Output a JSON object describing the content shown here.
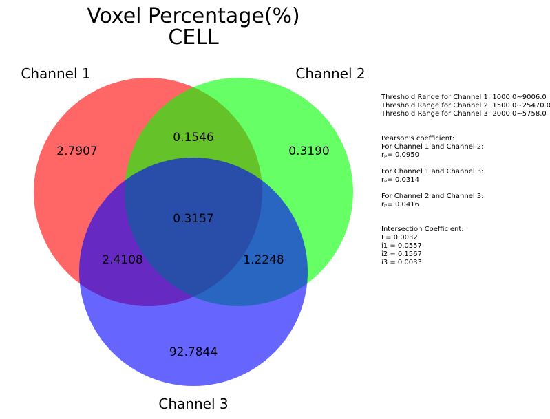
{
  "chart_data": {
    "type": "venn3",
    "title": "Voxel Percentage(%)",
    "subtitle": "CELL",
    "sets": [
      {
        "name": "Channel 1",
        "color": "#ff0000"
      },
      {
        "name": "Channel 2",
        "color": "#00ff00"
      },
      {
        "name": "Channel 3",
        "color": "#0000ff"
      }
    ],
    "regions": [
      {
        "id": "100",
        "sets": [
          "Channel 1"
        ],
        "value": "2.7907"
      },
      {
        "id": "010",
        "sets": [
          "Channel 2"
        ],
        "value": "0.3190"
      },
      {
        "id": "110",
        "sets": [
          "Channel 1",
          "Channel 2"
        ],
        "value": "0.1546"
      },
      {
        "id": "111",
        "sets": [
          "Channel 1",
          "Channel 2",
          "Channel 3"
        ],
        "value": "0.3157"
      },
      {
        "id": "101",
        "sets": [
          "Channel 1",
          "Channel 3"
        ],
        "value": "2.4108"
      },
      {
        "id": "011",
        "sets": [
          "Channel 2",
          "Channel 3"
        ],
        "value": "1.2248"
      },
      {
        "id": "001",
        "sets": [
          "Channel 3"
        ],
        "value": "92.7844"
      }
    ]
  },
  "stats": {
    "thresholds": [
      "Threshold Range for Channel 1: 1000.0~9006.0",
      "Threshold Range for Channel 2: 1500.0~25470.0",
      "Threshold Range for Channel 3: 2000.0~5758.0"
    ],
    "pearson_header": "Pearson's coefficient:",
    "pearson": [
      {
        "label": "For Channel 1 and Channel 2:",
        "value": "rₚ= 0.0950"
      },
      {
        "label": "For Channel 1 and Channel 3:",
        "value": "rₚ= 0.0314"
      },
      {
        "label": "For Channel 2 and Channel 3:",
        "value": "rₚ= 0.0416"
      }
    ],
    "intersection_header": "Intersection Coefficient:",
    "intersection": [
      "I = 0.0032",
      "i1 = 0.0557",
      "i2 = 0.1567",
      "i3 = 0.0033"
    ]
  }
}
